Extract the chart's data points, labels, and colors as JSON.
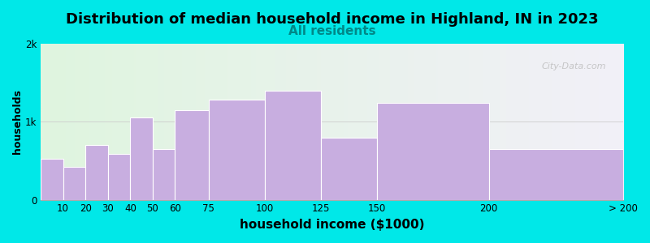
{
  "title": "Distribution of median household income in Highland, IN in 2023",
  "subtitle": "All residents",
  "xlabel": "household income ($1000)",
  "ylabel": "households",
  "categories": [
    "10",
    "20",
    "30",
    "40",
    "50",
    "60",
    "75",
    "100",
    "125",
    "150",
    "200",
    "> 200"
  ],
  "bar_lefts": [
    0,
    10,
    20,
    30,
    40,
    50,
    60,
    75,
    100,
    125,
    150,
    200
  ],
  "bar_widths": [
    10,
    10,
    10,
    10,
    10,
    10,
    15,
    25,
    25,
    25,
    50,
    60
  ],
  "values": [
    530,
    420,
    700,
    590,
    1050,
    650,
    1150,
    1280,
    1400,
    800,
    1240,
    650
  ],
  "bar_color": "#c8aee0",
  "bar_edge_color": "#ffffff",
  "ylim": [
    0,
    2000
  ],
  "xlim": [
    0,
    260
  ],
  "ytick_vals": [
    0,
    1000,
    2000
  ],
  "ytick_labels": [
    "0",
    "1k",
    "2k"
  ],
  "xtick_positions": [
    10,
    20,
    30,
    40,
    50,
    60,
    75,
    100,
    125,
    150,
    200,
    260
  ],
  "xtick_labels": [
    "10",
    "20",
    "30",
    "40",
    "50",
    "60",
    "75",
    "100",
    "125",
    "150",
    "200",
    "> 200"
  ],
  "background_color": "#00e8e8",
  "plot_bg_left": "#dff5df",
  "plot_bg_right": "#f2f0f8",
  "title_fontsize": 13,
  "subtitle_fontsize": 11,
  "subtitle_color": "#008888",
  "xlabel_fontsize": 11,
  "ylabel_fontsize": 9,
  "watermark_text": "City-Data.com"
}
